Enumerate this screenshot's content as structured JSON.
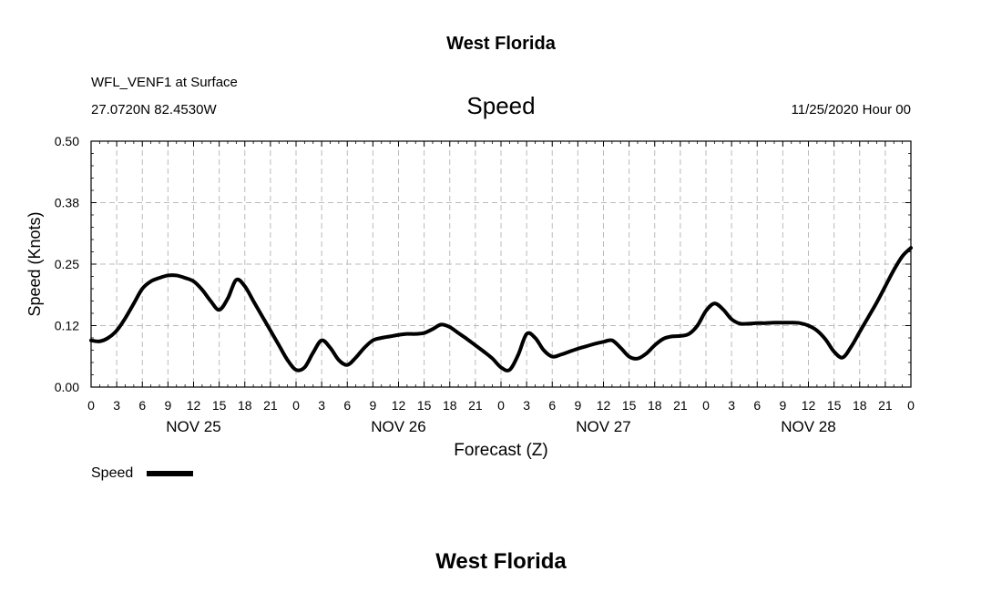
{
  "header": {
    "title": "West Florida",
    "station": "WFL_VENF1 at Surface",
    "coords": "27.0720N 82.4530W",
    "variable": "Speed",
    "datetime": "11/25/2020 Hour 00",
    "footer": "West Florida"
  },
  "legend": {
    "label": "Speed",
    "color": "#000000"
  },
  "chart_data": {
    "type": "line",
    "xlabel": "Forecast (Z)",
    "ylabel": "Speed (Knots)",
    "ylim": [
      0,
      0.5
    ],
    "xlim": [
      0,
      96
    ],
    "yticks": [
      "0.00",
      "0.12",
      "0.25",
      "0.38",
      "0.50"
    ],
    "ytick_values": [
      0,
      0.125,
      0.25,
      0.375,
      0.5
    ],
    "xtick_labels": [
      "0",
      "3",
      "6",
      "9",
      "12",
      "15",
      "18",
      "21",
      "0",
      "3",
      "6",
      "9",
      "12",
      "15",
      "18",
      "21",
      "0",
      "3",
      "6",
      "9",
      "12",
      "15",
      "18",
      "21",
      "0",
      "3",
      "6",
      "9",
      "12",
      "15",
      "18",
      "21",
      "0"
    ],
    "date_labels": [
      {
        "label": "NOV 25",
        "hour": 12
      },
      {
        "label": "NOV 26",
        "hour": 36
      },
      {
        "label": "NOV 27",
        "hour": 60
      },
      {
        "label": "NOV 28",
        "hour": 84
      }
    ],
    "grid": true,
    "series": [
      {
        "name": "Speed",
        "color": "#000000",
        "x": [
          0,
          1,
          2,
          3,
          4,
          5,
          6,
          7,
          8,
          9,
          10,
          11,
          12,
          13,
          14,
          15,
          16,
          17,
          18,
          19,
          20,
          21,
          22,
          23,
          24,
          25,
          26,
          27,
          28,
          29,
          30,
          31,
          32,
          33,
          34,
          35,
          36,
          37,
          38,
          39,
          40,
          41,
          42,
          43,
          44,
          45,
          46,
          47,
          48,
          49,
          50,
          51,
          52,
          53,
          54,
          55,
          56,
          57,
          58,
          59,
          60,
          61,
          62,
          63,
          64,
          65,
          66,
          67,
          68,
          69,
          70,
          71,
          72,
          73,
          74,
          75,
          76,
          77,
          78,
          79,
          80,
          81,
          82,
          83,
          84,
          85,
          86,
          87,
          88,
          89,
          90,
          91,
          92,
          93,
          94,
          95,
          96
        ],
        "values": [
          0.095,
          0.093,
          0.1,
          0.115,
          0.14,
          0.17,
          0.2,
          0.215,
          0.222,
          0.227,
          0.227,
          0.222,
          0.215,
          0.198,
          0.175,
          0.157,
          0.18,
          0.218,
          0.205,
          0.175,
          0.145,
          0.115,
          0.085,
          0.055,
          0.035,
          0.04,
          0.07,
          0.095,
          0.08,
          0.055,
          0.045,
          0.06,
          0.08,
          0.095,
          0.1,
          0.103,
          0.106,
          0.108,
          0.108,
          0.11,
          0.118,
          0.127,
          0.122,
          0.11,
          0.098,
          0.085,
          0.072,
          0.058,
          0.04,
          0.035,
          0.065,
          0.108,
          0.1,
          0.075,
          0.062,
          0.066,
          0.072,
          0.078,
          0.083,
          0.088,
          0.092,
          0.095,
          0.08,
          0.062,
          0.058,
          0.068,
          0.085,
          0.098,
          0.103,
          0.104,
          0.108,
          0.125,
          0.155,
          0.17,
          0.158,
          0.138,
          0.129,
          0.129,
          0.13,
          0.13,
          0.131,
          0.131,
          0.131,
          0.13,
          0.125,
          0.115,
          0.097,
          0.072,
          0.06,
          0.082,
          0.112,
          0.142,
          0.172,
          0.205,
          0.238,
          0.266,
          0.283
        ]
      }
    ]
  }
}
